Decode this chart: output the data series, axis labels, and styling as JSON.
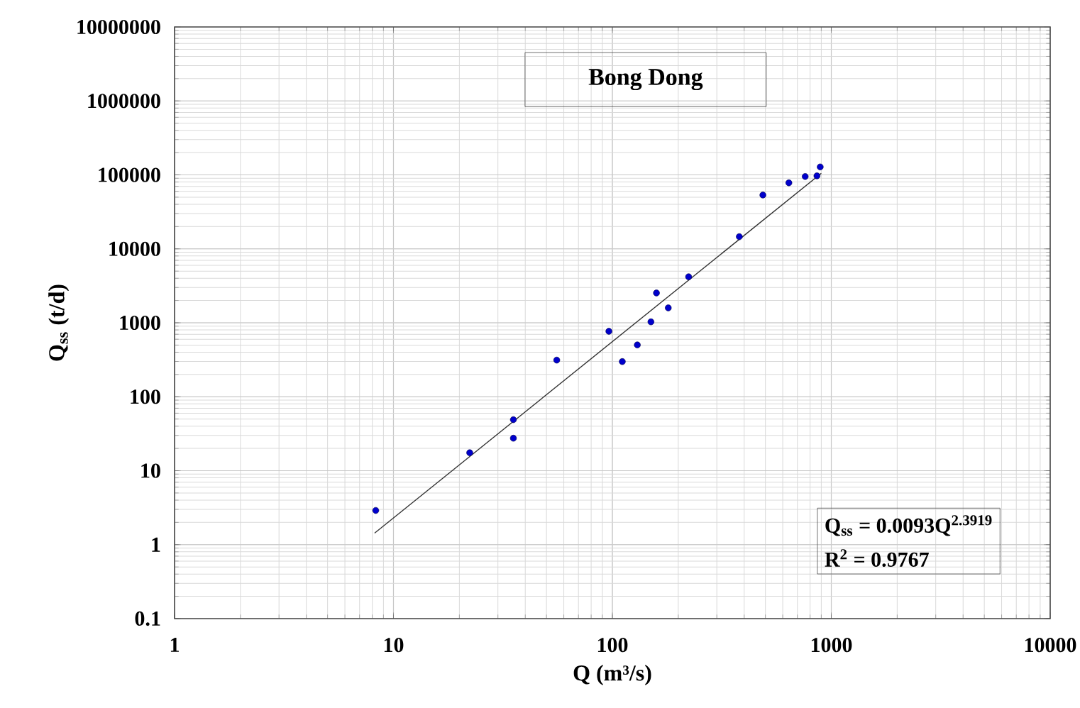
{
  "chart_data": {
    "type": "scatter",
    "title": "Bong Dong",
    "xlabel": "Q (m³/s)",
    "ylabel": "Q$_{ss}$ (t/d)",
    "log": "xy",
    "grid": true,
    "xlim": [
      1,
      10000
    ],
    "xticks": [
      1,
      10,
      100,
      1000,
      10000
    ],
    "ylim": [
      0.1,
      10000000
    ],
    "yticks": [
      0.1,
      1,
      10,
      100,
      1000,
      10000,
      100000,
      1000000,
      10000000
    ],
    "annotations": [
      "Q$_{ss}$ = 0.0093Q$^{2.3919}$",
      "R$^{2}$ = 0.9767"
    ],
    "series": [
      {
        "color": "#0000cc",
        "marker": "circle",
        "x": [
          8.3,
          22.3,
          35.3,
          35.3,
          55.7,
          96.4,
          111,
          130,
          150,
          159,
          180,
          223,
          380,
          487,
          640,
          760,
          860,
          890
        ],
        "values": [
          2.9,
          17.5,
          49,
          27.5,
          313,
          767,
          299,
          502,
          1030,
          2530,
          1590,
          4190,
          14600,
          53400,
          78000,
          95000,
          97000,
          128000
        ]
      },
      {
        "type": "line",
        "color": "#333333",
        "line_style": "solid",
        "marker": "none",
        "x": [
          8.2,
          900
        ],
        "values": [
          1.43,
          105000
        ]
      }
    ]
  }
}
